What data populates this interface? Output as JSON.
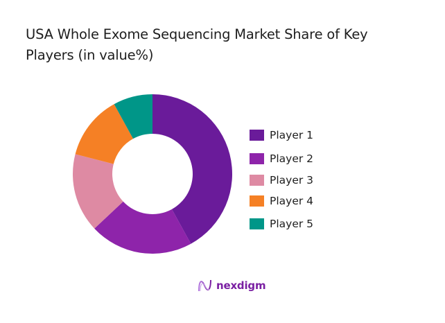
{
  "chart_data": {
    "type": "pie",
    "variant": "donut",
    "title": "USA Whole Exome Sequencing Market Share of Key Players (in value%)",
    "categories": [
      "Player 1",
      "Player 2",
      "Player 3",
      "Player 4",
      "Player 5"
    ],
    "values": [
      42,
      21,
      16,
      13,
      8
    ],
    "colors": [
      "#6a1b9a",
      "#8e24aa",
      "#de8aa3",
      "#f58025",
      "#009688"
    ],
    "start_angle": "12 o'clock, clockwise",
    "legend_position": "right",
    "data_labels": false
  },
  "title_line1": "USA Whole Exome Sequencing Market Share of Key",
  "title_line2": "Players (in value%)",
  "legend": [
    {
      "label": "Player 1",
      "color": "#6a1b9a"
    },
    {
      "label": "Player 2",
      "color": "#8e24aa"
    },
    {
      "label": "Player 3",
      "color": "#de8aa3"
    },
    {
      "label": "Player 4",
      "color": "#f58025"
    },
    {
      "label": "Player 5",
      "color": "#009688"
    }
  ],
  "brand": {
    "name": "nexdigm",
    "icon": "nexdigm-logo-icon"
  }
}
